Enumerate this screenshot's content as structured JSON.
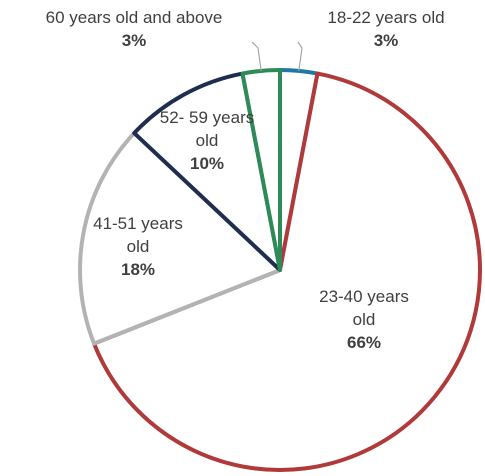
{
  "chart_data": {
    "type": "pie",
    "slices": [
      {
        "label": "18-22 years old",
        "value": 3,
        "value_label": "3%",
        "color": "#1f77a4"
      },
      {
        "label": "23-40 years old",
        "value": 66,
        "value_label": "66%",
        "color": "#b03a3a"
      },
      {
        "label": "41-51 years old",
        "value": 18,
        "value_label": "18%",
        "color": "#b3b3b3"
      },
      {
        "label": "52- 59 years old",
        "value": 10,
        "value_label": "10%",
        "color": "#1f2d4f"
      },
      {
        "label": "60 years old and above",
        "value": 3,
        "value_label": "3%",
        "color": "#2e8b57"
      }
    ],
    "fill": "#ffffff",
    "start_angle_deg": 0,
    "direction": "clockwise",
    "legend": "none",
    "data_labels": "outside for small slices with leader lines, inside for large slices"
  }
}
